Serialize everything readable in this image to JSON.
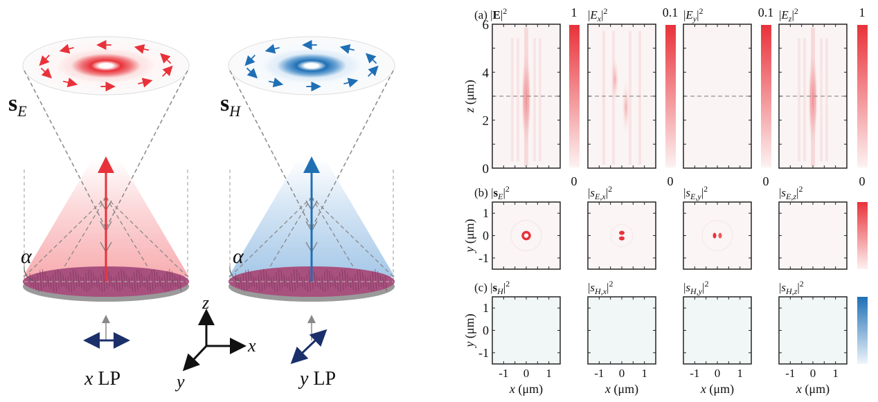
{
  "schematic": {
    "left": {
      "symbol": "s",
      "subscript": "E",
      "angle_label": "α",
      "pol_axis": "x",
      "pol_label": "LP",
      "color": "#e8323a"
    },
    "right": {
      "symbol": "s",
      "subscript": "H",
      "angle_label": "α",
      "pol_axis": "y",
      "pol_label": "LP",
      "color": "#1f6fb5"
    },
    "axes": {
      "z": "z",
      "x": "x",
      "y": "y"
    }
  },
  "colors": {
    "red": "#e8323a",
    "blue": "#1f6fb5",
    "metasurface": "#a8507e",
    "polarization_arrow": "#1b2f6b"
  },
  "panels": {
    "a": {
      "letter": "(a)",
      "ylabel": "z (μm)",
      "yticks": [
        "0",
        "2",
        "4",
        "6"
      ],
      "ylim": [
        0,
        6
      ],
      "xlim": [
        -1.5,
        1.5
      ],
      "guide_z": 3,
      "plots": [
        {
          "title": {
            "pre": "|",
            "base": "E",
            "bold": true,
            "sub": "",
            "post": "|",
            "sup": "2"
          },
          "cbar_max": "1",
          "cbar_min": "0"
        },
        {
          "title": {
            "pre": "|",
            "base": "E",
            "bold": false,
            "sub": "x",
            "post": "|",
            "sup": "2"
          },
          "cbar_max": "0.1",
          "cbar_min": "0"
        },
        {
          "title": {
            "pre": "|",
            "base": "E",
            "bold": false,
            "sub": "y",
            "post": "|",
            "sup": "2"
          },
          "cbar_max": "0.1",
          "cbar_min": "0"
        },
        {
          "title": {
            "pre": "|",
            "base": "E",
            "bold": false,
            "sub": "z",
            "post": "|",
            "sup": "2"
          },
          "cbar_max": "1",
          "cbar_min": "0"
        }
      ]
    },
    "b": {
      "letter": "(b)",
      "ylabel": "y (μm)",
      "yticks": [
        "1",
        "0",
        "-1"
      ],
      "plots": [
        {
          "title": {
            "pre": "|",
            "base": "s",
            "bold": true,
            "sub": "E",
            "post": "|",
            "sup": "2"
          }
        },
        {
          "title": {
            "pre": "|",
            "base": "s",
            "bold": false,
            "sub": "E,x",
            "post": "|",
            "sup": "2"
          }
        },
        {
          "title": {
            "pre": "|",
            "base": "s",
            "bold": false,
            "sub": "E,y",
            "post": "|",
            "sup": "2"
          }
        },
        {
          "title": {
            "pre": "|",
            "base": "s",
            "bold": false,
            "sub": "E,z",
            "post": "|",
            "sup": "2"
          }
        }
      ]
    },
    "c": {
      "letter": "(c)",
      "ylabel": "y (μm)",
      "yticks": [
        "1",
        "0",
        "-1"
      ],
      "xticks": [
        "-1",
        "0",
        "1"
      ],
      "xlabel": "x (μm)",
      "plots": [
        {
          "title": {
            "pre": "|",
            "base": "s",
            "bold": true,
            "sub": "H",
            "post": "|",
            "sup": "2"
          }
        },
        {
          "title": {
            "pre": "|",
            "base": "s",
            "bold": false,
            "sub": "H,x",
            "post": "|",
            "sup": "2"
          }
        },
        {
          "title": {
            "pre": "|",
            "base": "s",
            "bold": false,
            "sub": "H,y",
            "post": "|",
            "sup": "2"
          }
        },
        {
          "title": {
            "pre": "|",
            "base": "s",
            "bold": false,
            "sub": "H,z",
            "post": "|",
            "sup": "2"
          }
        }
      ]
    }
  }
}
